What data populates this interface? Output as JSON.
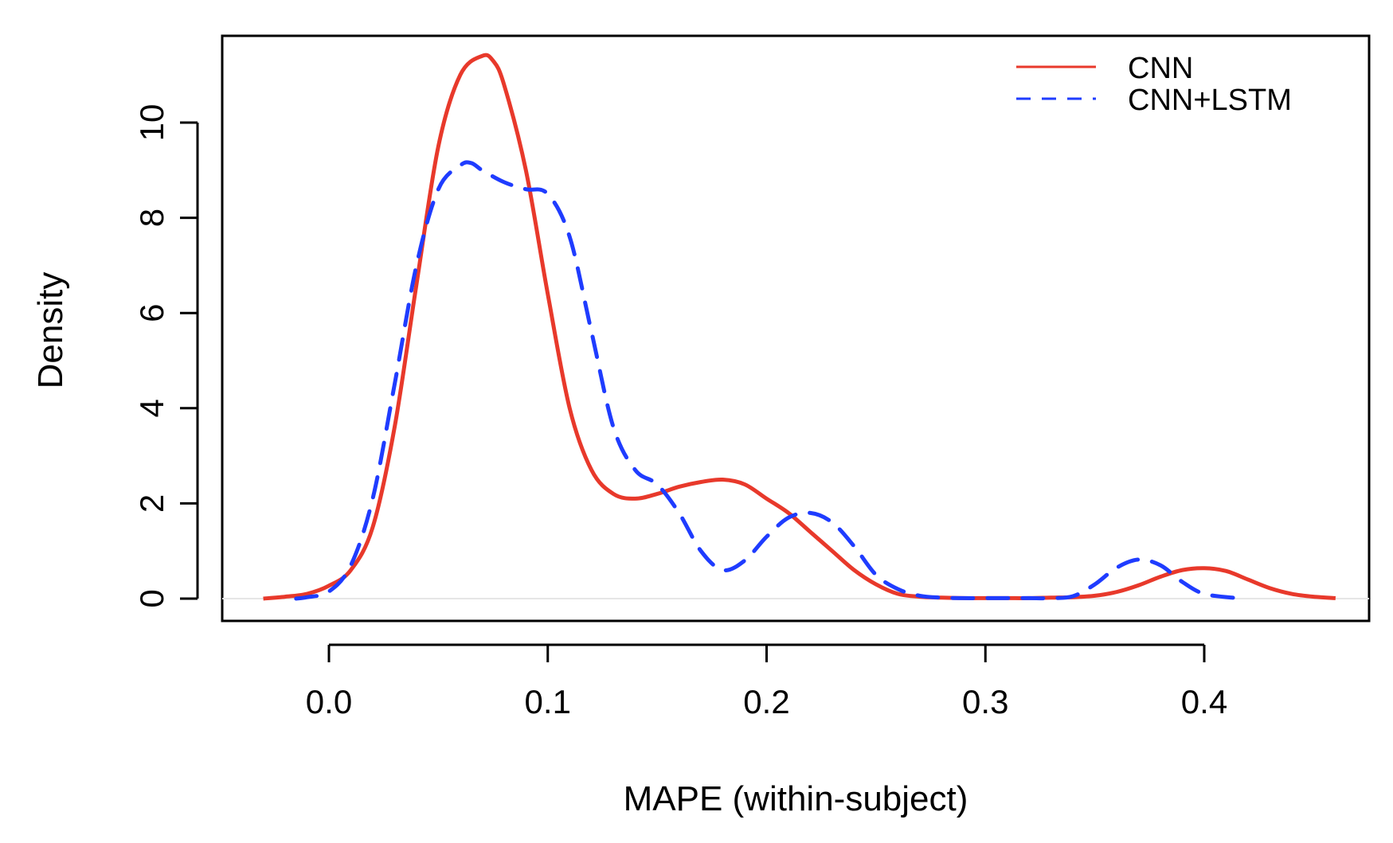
{
  "chart_data": {
    "type": "line",
    "title": "",
    "xlabel": "MAPE (within-subject)",
    "ylabel": "Density",
    "xlim": [
      -0.03,
      0.46
    ],
    "ylim": [
      0,
      11.4
    ],
    "x_ticks": [
      0.0,
      0.1,
      0.2,
      0.3,
      0.4
    ],
    "x_tick_labels": [
      "0.0",
      "0.1",
      "0.2",
      "0.3",
      "0.4"
    ],
    "y_ticks": [
      0,
      2,
      4,
      6,
      8,
      10
    ],
    "y_tick_labels": [
      "0",
      "2",
      "4",
      "6",
      "8",
      "10"
    ],
    "grid": false,
    "legend_position": "top-right",
    "series": [
      {
        "name": "CNN",
        "color": "#e8392b",
        "dash": "solid",
        "x": [
          -0.03,
          -0.02,
          -0.01,
          0.0,
          0.01,
          0.02,
          0.03,
          0.04,
          0.05,
          0.06,
          0.07,
          0.075,
          0.08,
          0.09,
          0.1,
          0.11,
          0.12,
          0.13,
          0.14,
          0.15,
          0.16,
          0.17,
          0.18,
          0.19,
          0.2,
          0.21,
          0.22,
          0.23,
          0.24,
          0.25,
          0.26,
          0.27,
          0.28,
          0.29,
          0.3,
          0.31,
          0.32,
          0.33,
          0.34,
          0.35,
          0.36,
          0.37,
          0.38,
          0.39,
          0.4,
          0.41,
          0.42,
          0.43,
          0.44,
          0.45,
          0.46
        ],
        "values": [
          0.0,
          0.04,
          0.1,
          0.27,
          0.6,
          1.5,
          3.6,
          6.6,
          9.5,
          11.0,
          11.4,
          11.3,
          10.8,
          9.0,
          6.4,
          4.0,
          2.7,
          2.2,
          2.1,
          2.2,
          2.35,
          2.45,
          2.5,
          2.4,
          2.1,
          1.8,
          1.4,
          1.0,
          0.6,
          0.3,
          0.1,
          0.04,
          0.02,
          0.01,
          0.01,
          0.01,
          0.01,
          0.02,
          0.03,
          0.06,
          0.14,
          0.28,
          0.46,
          0.6,
          0.64,
          0.58,
          0.4,
          0.22,
          0.1,
          0.04,
          0.01
        ]
      },
      {
        "name": "CNN+LSTM",
        "color": "#1f3cff",
        "dash": "dashed",
        "x": [
          -0.015,
          -0.01,
          0.0,
          0.01,
          0.02,
          0.03,
          0.04,
          0.05,
          0.06,
          0.065,
          0.07,
          0.08,
          0.09,
          0.1,
          0.11,
          0.12,
          0.13,
          0.14,
          0.15,
          0.16,
          0.17,
          0.18,
          0.19,
          0.2,
          0.21,
          0.22,
          0.23,
          0.24,
          0.25,
          0.26,
          0.27,
          0.28,
          0.29,
          0.3,
          0.31,
          0.32,
          0.33,
          0.34,
          0.35,
          0.36,
          0.37,
          0.38,
          0.39,
          0.4,
          0.415
        ],
        "values": [
          0.0,
          0.03,
          0.15,
          0.7,
          2.1,
          4.5,
          7.0,
          8.6,
          9.1,
          9.15,
          9.0,
          8.75,
          8.6,
          8.5,
          7.6,
          5.6,
          3.6,
          2.7,
          2.4,
          1.8,
          1.0,
          0.6,
          0.8,
          1.3,
          1.7,
          1.8,
          1.6,
          1.1,
          0.5,
          0.2,
          0.06,
          0.02,
          0.01,
          0.01,
          0.01,
          0.01,
          0.01,
          0.05,
          0.3,
          0.65,
          0.82,
          0.7,
          0.35,
          0.1,
          0.01
        ]
      }
    ]
  }
}
